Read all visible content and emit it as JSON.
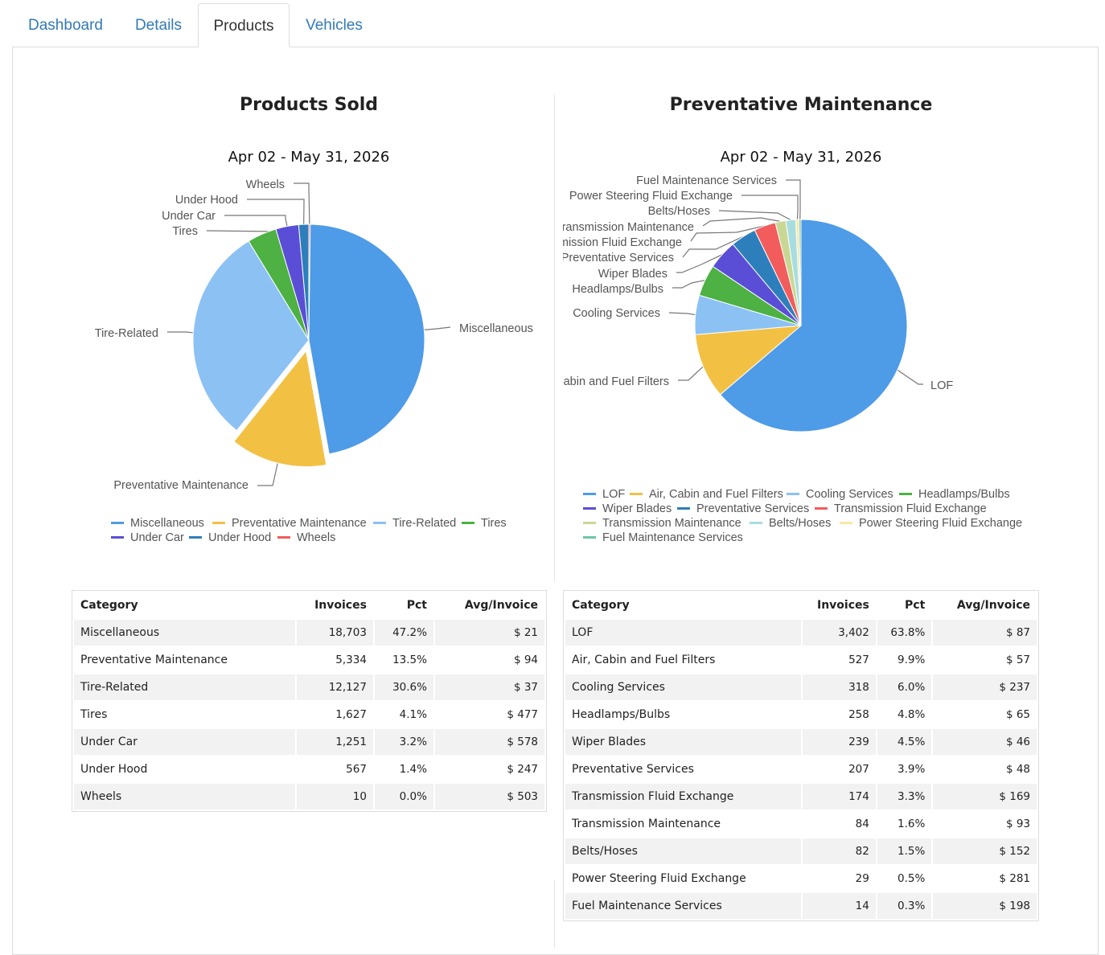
{
  "tabs": [
    {
      "label": "Dashboard",
      "active": false
    },
    {
      "label": "Details",
      "active": false
    },
    {
      "label": "Products",
      "active": true
    },
    {
      "label": "Vehicles",
      "active": false
    }
  ],
  "chart_data": [
    {
      "type": "pie",
      "title": "Products Sold",
      "subtitle": "Apr 02 - May 31, 2026",
      "categories": [
        "Miscellaneous",
        "Preventative Maintenance",
        "Tire-Related",
        "Tires",
        "Under Car",
        "Under Hood",
        "Wheels"
      ],
      "values": [
        47.2,
        13.5,
        30.6,
        4.1,
        3.2,
        1.4,
        0.0
      ],
      "colors": [
        "#4e9be8",
        "#f2c144",
        "#8cc1f4",
        "#4db143",
        "#5b4ed6",
        "#2d7fbb",
        "#f25c5c"
      ],
      "exploded": "Preventative Maintenance",
      "legend": "bottom"
    },
    {
      "type": "pie",
      "title": "Preventative Maintenance",
      "subtitle": "Apr 02 - May 31, 2026",
      "categories": [
        "LOF",
        "Air, Cabin and Fuel Filters",
        "Cooling Services",
        "Headlamps/Bulbs",
        "Wiper Blades",
        "Preventative Services",
        "Transmission Fluid Exchange",
        "Transmission Maintenance",
        "Belts/Hoses",
        "Power Steering Fluid Exchange",
        "Fuel Maintenance Services"
      ],
      "values": [
        63.8,
        9.9,
        6.0,
        4.8,
        4.5,
        3.9,
        3.3,
        1.6,
        1.5,
        0.5,
        0.3
      ],
      "colors": [
        "#4e9be8",
        "#f2c144",
        "#8cc1f4",
        "#4db143",
        "#5b4ed6",
        "#2d7fbb",
        "#f25c5c",
        "#c8d894",
        "#a8dde0",
        "#f8e7a6",
        "#6ec6a6"
      ],
      "legend": "bottom"
    }
  ],
  "tables": [
    {
      "headers": [
        "Category",
        "Invoices",
        "Pct",
        "Avg/Invoice"
      ],
      "rows": [
        [
          "Miscellaneous",
          "18,703",
          "47.2%",
          "$ 21"
        ],
        [
          "Preventative Maintenance",
          "5,334",
          "13.5%",
          "$ 94"
        ],
        [
          "Tire-Related",
          "12,127",
          "30.6%",
          "$ 37"
        ],
        [
          "Tires",
          "1,627",
          "4.1%",
          "$ 477"
        ],
        [
          "Under Car",
          "1,251",
          "3.2%",
          "$ 578"
        ],
        [
          "Under Hood",
          "567",
          "1.4%",
          "$ 247"
        ],
        [
          "Wheels",
          "10",
          "0.0%",
          "$ 503"
        ]
      ]
    },
    {
      "headers": [
        "Category",
        "Invoices",
        "Pct",
        "Avg/Invoice"
      ],
      "rows": [
        [
          "LOF",
          "3,402",
          "63.8%",
          "$ 87"
        ],
        [
          "Air, Cabin and Fuel Filters",
          "527",
          "9.9%",
          "$ 57"
        ],
        [
          "Cooling Services",
          "318",
          "6.0%",
          "$ 237"
        ],
        [
          "Headlamps/Bulbs",
          "258",
          "4.8%",
          "$ 65"
        ],
        [
          "Wiper Blades",
          "239",
          "4.5%",
          "$ 46"
        ],
        [
          "Preventative Services",
          "207",
          "3.9%",
          "$ 48"
        ],
        [
          "Transmission Fluid Exchange",
          "174",
          "3.3%",
          "$ 169"
        ],
        [
          "Transmission Maintenance",
          "84",
          "1.6%",
          "$ 93"
        ],
        [
          "Belts/Hoses",
          "82",
          "1.5%",
          "$ 152"
        ],
        [
          "Power Steering Fluid Exchange",
          "29",
          "0.5%",
          "$ 281"
        ],
        [
          "Fuel Maintenance Services",
          "14",
          "0.3%",
          "$ 198"
        ]
      ]
    }
  ]
}
